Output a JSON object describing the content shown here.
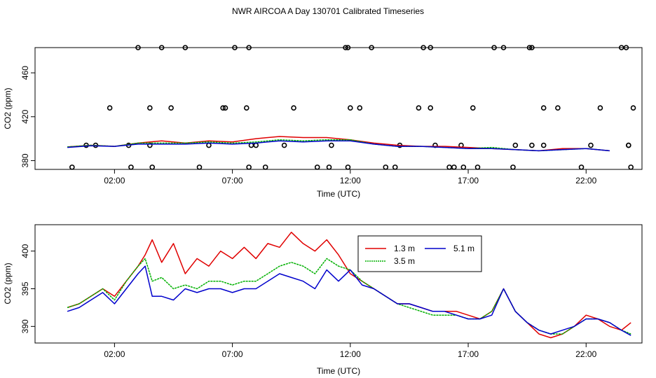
{
  "title": "NWR AIRCOA A  Day 130701  Calibrated Timeseries",
  "colors": {
    "s13": "#e00000",
    "s35": "#00b000",
    "s51": "#0000cc",
    "outlier": "#000000"
  },
  "chart_data": [
    {
      "type": "line",
      "id": "top",
      "xlabel": "Time (UTC)",
      "ylabel": "CO2 (ppm)",
      "xlim": [
        -1.37,
        24.37
      ],
      "ylim": [
        372,
        483
      ],
      "xticks": [
        {
          "v": 2,
          "label": "02:00"
        },
        {
          "v": 7,
          "label": "07:00"
        },
        {
          "v": 12,
          "label": "12:00"
        },
        {
          "v": 17,
          "label": "17:00"
        },
        {
          "v": 22,
          "label": "22:00"
        }
      ],
      "yticks": [
        {
          "v": 380,
          "label": "380"
        },
        {
          "v": 420,
          "label": "420"
        },
        {
          "v": 460,
          "label": "460"
        }
      ],
      "series": [
        {
          "name": "1.3 m",
          "key": "s13",
          "x": [
            0,
            1,
            2,
            3,
            4,
            5,
            6,
            7,
            8,
            9,
            10,
            11,
            12,
            13,
            14,
            15,
            16,
            17,
            18,
            19,
            20,
            21,
            22,
            23
          ],
          "values": [
            392.5,
            394,
            393,
            396,
            398,
            396,
            398,
            397,
            400,
            402,
            401,
            401,
            399,
            396,
            394,
            393,
            393,
            392,
            391,
            390,
            389,
            391,
            391,
            389
          ]
        },
        {
          "name": "3.5 m",
          "key": "s35",
          "x": [
            0,
            1,
            2,
            3,
            4,
            5,
            6,
            7,
            8,
            9,
            10,
            11,
            12,
            13,
            14,
            15,
            16,
            17,
            18,
            19,
            20,
            21,
            22,
            23
          ],
          "values": [
            392.5,
            394,
            393,
            396,
            396,
            396,
            397,
            396,
            397,
            399,
            398,
            399,
            399,
            395,
            393,
            393,
            392,
            391,
            392,
            390,
            389,
            390,
            391,
            389
          ]
        },
        {
          "name": "5.1 m",
          "key": "s51",
          "x": [
            0,
            1,
            2,
            3,
            4,
            5,
            6,
            7,
            8,
            9,
            10,
            11,
            12,
            13,
            14,
            15,
            16,
            17,
            18,
            19,
            20,
            21,
            22,
            23
          ],
          "values": [
            392,
            393.5,
            393,
            395,
            395,
            395,
            396,
            395,
            396,
            398,
            397,
            398,
            398,
            395,
            393,
            393,
            392,
            391,
            391,
            390,
            389,
            390,
            391,
            389
          ]
        }
      ],
      "outliers": {
        "x": [
          0.2,
          1.8,
          2.7,
          2.6,
          4.0,
          4.4,
          5.6,
          6.0,
          6.6,
          7.1,
          7.7,
          7.8,
          8.4,
          9.2,
          9.6,
          10.6,
          11.2,
          11.8,
          12.0,
          12.4,
          13.5,
          14.1,
          15.1,
          15.4,
          16.2,
          16.4,
          16.7,
          17.2,
          17.4,
          18.5,
          18.9,
          19.6,
          20.2,
          20.2,
          20.8,
          21.8,
          22.2,
          22.6,
          23.5,
          23.7,
          23.9,
          24.0,
          0.8,
          1.2,
          3.0,
          3.5,
          3.6,
          3.5,
          5.0,
          6.7,
          7.6,
          7.7,
          8.0,
          11.1,
          11.9,
          11.9,
          12.9,
          14.9,
          15.4,
          15.6,
          16.8,
          18.1,
          19.7,
          19.7,
          19.0,
          13.9,
          23.8,
          23.8
        ],
        "values": [
          374,
          428,
          374,
          394,
          483,
          428,
          374,
          394,
          428,
          483,
          374,
          394,
          374,
          394,
          428,
          374,
          394,
          483,
          428,
          428,
          374,
          394,
          483,
          483,
          374,
          374,
          394,
          428,
          374,
          483,
          374,
          483,
          428,
          394,
          428,
          374,
          394,
          428,
          483,
          483,
          374,
          428,
          394,
          394,
          483,
          394,
          374,
          428,
          483,
          428,
          428,
          483,
          394,
          374,
          374,
          483,
          483,
          428,
          428,
          394,
          374,
          483,
          394,
          483,
          394,
          374,
          394,
          394
        ]
      }
    },
    {
      "type": "line",
      "id": "bottom",
      "xlabel": "Time (UTC)",
      "ylabel": "CO2 (ppm)",
      "xlim": [
        -1.37,
        24.37
      ],
      "ylim": [
        387.8,
        403.5
      ],
      "xticks": [
        {
          "v": 2,
          "label": "02:00"
        },
        {
          "v": 7,
          "label": "07:00"
        },
        {
          "v": 12,
          "label": "12:00"
        },
        {
          "v": 17,
          "label": "17:00"
        },
        {
          "v": 22,
          "label": "22:00"
        }
      ],
      "yticks": [
        {
          "v": 390,
          "label": "390"
        },
        {
          "v": 395,
          "label": "395"
        },
        {
          "v": 400,
          "label": "400"
        }
      ],
      "legend": {
        "position": "top-center",
        "entries": [
          "1.3 m",
          "3.5 m",
          "5.1 m"
        ]
      },
      "series": [
        {
          "name": "1.3 m",
          "key": "s13",
          "x": [
            0,
            0.5,
            1,
            1.5,
            2,
            2.5,
            3,
            3.3,
            3.6,
            4,
            4.5,
            5,
            5.5,
            6,
            6.5,
            7,
            7.5,
            8,
            8.5,
            9,
            9.5,
            10,
            10.5,
            11,
            11.5,
            12,
            12.5,
            13,
            13.5,
            14,
            14.5,
            15,
            15.5,
            16,
            16.5,
            17,
            17.5,
            18,
            18.5,
            19,
            19.5,
            20,
            20.5,
            21,
            21.5,
            22,
            22.5,
            23,
            23.5,
            23.9
          ],
          "values": [
            392.5,
            393,
            394,
            395,
            394,
            396,
            398,
            399.5,
            401.5,
            398.5,
            401,
            397,
            399,
            398,
            400,
            399,
            400.5,
            399,
            401,
            400.5,
            402.5,
            401,
            400,
            401.5,
            399.5,
            397,
            396,
            395,
            394,
            393,
            393,
            392.5,
            392,
            392,
            392,
            391.5,
            391,
            392,
            395,
            392,
            390.5,
            389,
            388.5,
            389,
            390,
            391.5,
            391,
            390,
            389.5,
            390.5
          ]
        },
        {
          "name": "3.5 m",
          "key": "s35",
          "x": [
            0,
            0.5,
            1,
            1.5,
            2,
            2.5,
            3,
            3.3,
            3.6,
            4,
            4.5,
            5,
            5.5,
            6,
            6.5,
            7,
            7.5,
            8,
            8.5,
            9,
            9.5,
            10,
            10.5,
            11,
            11.5,
            12,
            12.5,
            13,
            13.5,
            14,
            14.5,
            15,
            15.5,
            16,
            16.5,
            17,
            17.5,
            18,
            18.5,
            19,
            19.5,
            20,
            20.5,
            21,
            21.5,
            22,
            22.5,
            23,
            23.5,
            23.9
          ],
          "values": [
            392.5,
            393,
            394,
            395,
            393.5,
            396,
            398,
            399,
            396,
            396.5,
            395,
            395.5,
            395,
            396,
            396,
            395.5,
            396,
            396,
            397,
            398,
            398.5,
            398,
            397,
            399,
            398,
            397.5,
            396,
            395,
            394,
            393,
            392.5,
            392,
            391.5,
            391.5,
            391.5,
            391,
            391,
            392,
            395,
            392,
            390.5,
            389.5,
            389,
            389,
            390,
            391,
            391,
            390.5,
            389.5,
            389
          ]
        },
        {
          "name": "5.1 m",
          "key": "s51",
          "x": [
            0,
            0.5,
            1,
            1.5,
            2,
            2.5,
            3,
            3.3,
            3.6,
            4,
            4.5,
            5,
            5.5,
            6,
            6.5,
            7,
            7.5,
            8,
            8.5,
            9,
            9.5,
            10,
            10.5,
            11,
            11.5,
            12,
            12.5,
            13,
            13.5,
            14,
            14.5,
            15,
            15.5,
            16,
            16.5,
            17,
            17.5,
            18,
            18.5,
            19,
            19.5,
            20,
            20.5,
            21,
            21.5,
            22,
            22.5,
            23,
            23.5,
            23.9
          ],
          "values": [
            392,
            392.5,
            393.5,
            394.5,
            393,
            395,
            397,
            398,
            394,
            394,
            393.5,
            395,
            394.5,
            395,
            395,
            394.5,
            395,
            395,
            396,
            397,
            396.5,
            396,
            395,
            397.5,
            396,
            397.5,
            395.5,
            395,
            394,
            393,
            393,
            392.5,
            392,
            392,
            391.5,
            391,
            391,
            391.5,
            395,
            392,
            390.5,
            389.5,
            389,
            389.5,
            390,
            391,
            391,
            390.5,
            389.5,
            388.8
          ]
        }
      ]
    }
  ]
}
